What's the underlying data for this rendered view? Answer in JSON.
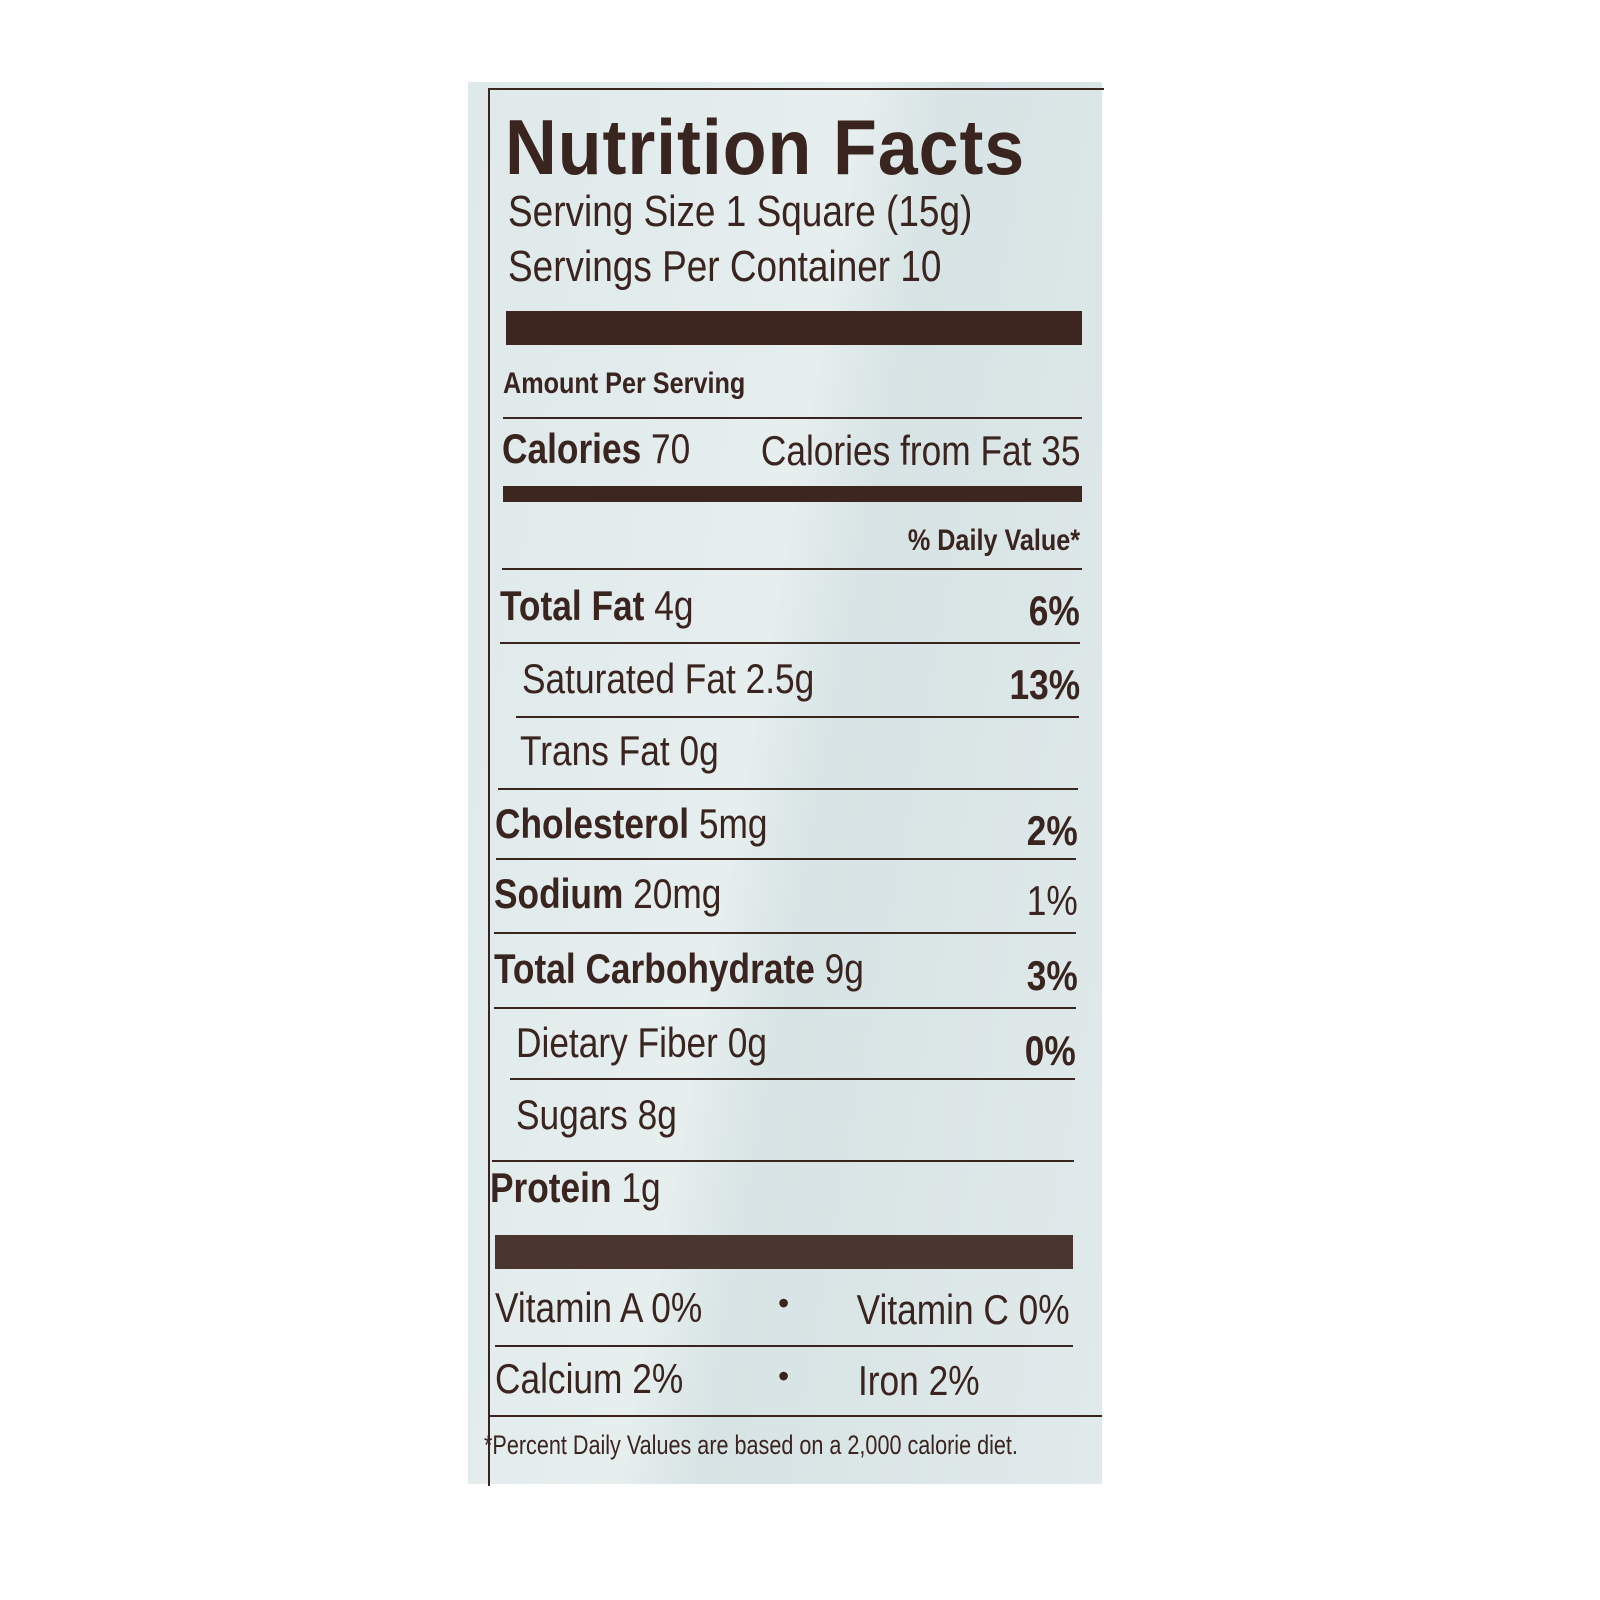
{
  "title": "Nutrition Facts",
  "serving_size": "Serving Size 1 Square (15g)",
  "servings_per_container": "Servings Per Container 10",
  "amount_per_serving": "Amount Per Serving",
  "calories": {
    "label": "Calories",
    "value": "70",
    "from_fat": "Calories from Fat 35"
  },
  "daily_value_header": "% Daily Value*",
  "nutrients": [
    {
      "name": "Total Fat",
      "amount": "4g",
      "dv": "6%"
    },
    {
      "name": "Saturated Fat",
      "amount": "2.5g",
      "dv": "13%"
    },
    {
      "name": "Trans Fat",
      "amount": "0g",
      "dv": ""
    },
    {
      "name": "Cholesterol",
      "amount": "5mg",
      "dv": "2%"
    },
    {
      "name": "Sodium",
      "amount": "20mg",
      "dv": "1%"
    },
    {
      "name": "Total Carbohydrate",
      "amount": "9g",
      "dv": "3%"
    },
    {
      "name": "Dietary Fiber",
      "amount": "0g",
      "dv": "0%"
    },
    {
      "name": "Sugars",
      "amount": "8g",
      "dv": ""
    },
    {
      "name": "Protein",
      "amount": "1g",
      "dv": ""
    }
  ],
  "vitamins": [
    {
      "left": "Vitamin A 0%",
      "right": "Vitamin C 0%"
    },
    {
      "left": "Calcium 2%",
      "right": "Iron 2%"
    }
  ],
  "bullet": "•",
  "footnote": "*Percent Daily Values are based on a 2,000 calorie diet.",
  "colors": {
    "ink": "#3a2420",
    "background": "#dfe9ea"
  }
}
